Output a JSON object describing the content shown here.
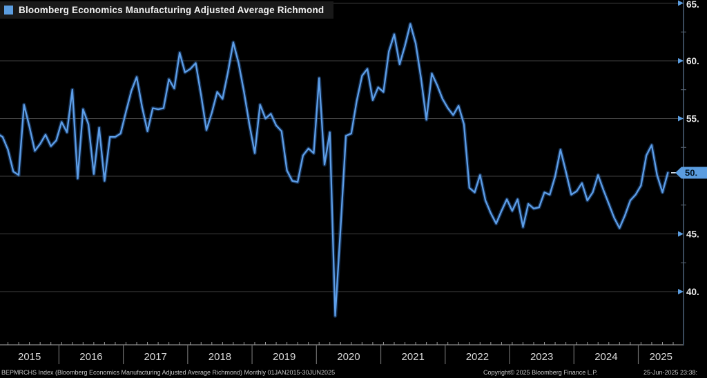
{
  "legend": {
    "label": "Bloomberg Economics Manufacturing Adjusted Average Richmond",
    "swatch_color": "#5b9de0"
  },
  "footer": {
    "left": "BEPMRCHS Index (Bloomberg Economics Manufacturing Adjusted Average Richmond)  Monthly 01JAN2015-30JUN2025",
    "center": "Copyright© 2025 Bloomberg Finance L.P.",
    "right": "25-Jun-2025 23:38:"
  },
  "colors": {
    "background": "#000000",
    "line": "#5d9ee8",
    "line_glow": "#2f6fc0",
    "accent": "#5b9de0",
    "grid": "#414141",
    "axis_line": "#3a4a5c",
    "tick_minor": "#5a6675",
    "axis_text": "#ececec",
    "year_text": "#d9d9d9",
    "badge_text": "#001220"
  },
  "chart_data": {
    "type": "line",
    "title": "Bloomberg Economics Manufacturing Adjusted Average Richmond",
    "frequency": "monthly",
    "x_start": "2015-01",
    "x_end": "2025-06",
    "grid": true,
    "legend_position": "top-left",
    "ylim": [
      35.5,
      65.5
    ],
    "y_ticks": [
      65,
      60,
      55,
      50,
      45,
      40
    ],
    "y_tick_labels": [
      "65.",
      "60.",
      "55.",
      "50.",
      "45.",
      "40."
    ],
    "y_minor_ticks": [
      62.5,
      57.5,
      52.5,
      47.5,
      42.5
    ],
    "x_tick_labels": [
      "2015",
      "2016",
      "2017",
      "2018",
      "2019",
      "2020",
      "2021",
      "2022",
      "2023",
      "2024",
      "2025"
    ],
    "last_value_badge": "50.",
    "last_value": 50.3,
    "series": [
      {
        "name": "Bloomberg Economics Manufacturing Adjusted Average Richmond",
        "values": [
          53.7,
          53.4,
          52.3,
          50.4,
          50.1,
          56.2,
          54.3,
          52.2,
          52.8,
          53.6,
          52.6,
          53.1,
          54.7,
          53.8,
          57.5,
          49.8,
          55.8,
          54.5,
          50.2,
          54.2,
          49.6,
          53.4,
          53.4,
          53.7,
          55.6,
          57.4,
          58.6,
          56.0,
          53.9,
          55.9,
          55.8,
          55.9,
          58.4,
          57.6,
          60.7,
          59.0,
          59.3,
          59.8,
          57.0,
          54.0,
          55.5,
          57.3,
          56.7,
          59.0,
          61.6,
          59.8,
          57.3,
          54.5,
          52.0,
          56.2,
          55.0,
          55.4,
          54.4,
          53.9,
          50.5,
          49.6,
          49.5,
          51.8,
          52.4,
          52.0,
          58.5,
          51.0,
          53.8,
          37.9,
          45.5,
          53.5,
          53.7,
          56.5,
          58.7,
          59.3,
          56.6,
          57.7,
          57.3,
          60.8,
          62.3,
          59.7,
          61.3,
          63.2,
          61.5,
          58.5,
          54.9,
          58.9,
          57.9,
          56.7,
          55.9,
          55.3,
          56.1,
          54.5,
          49.0,
          48.6,
          50.1,
          47.9,
          46.8,
          45.9,
          47.0,
          48.0,
          47.0,
          48.0,
          45.6,
          47.6,
          47.2,
          47.3,
          48.6,
          48.4,
          50.0,
          52.3,
          50.4,
          48.4,
          48.7,
          49.4,
          47.9,
          48.6,
          50.1,
          48.8,
          47.6,
          46.4,
          45.5,
          46.6,
          47.9,
          48.4,
          49.2,
          51.8,
          52.7,
          50.1,
          48.6,
          50.3
        ]
      }
    ]
  }
}
